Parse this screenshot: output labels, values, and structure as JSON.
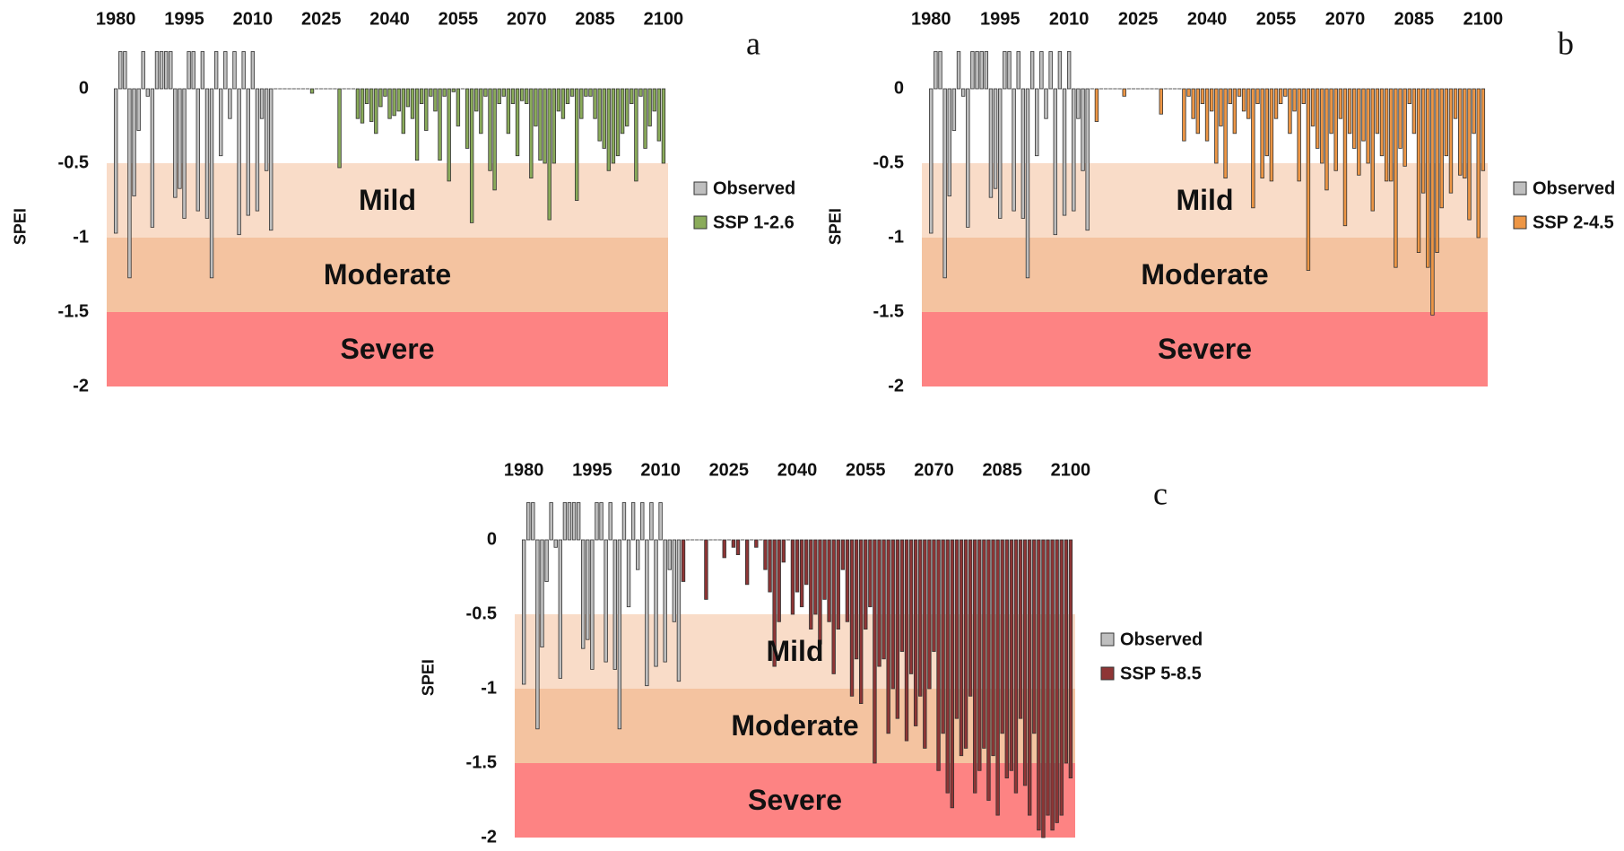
{
  "chart_data": [
    {
      "type": "bar",
      "panel_label": "a",
      "y_label": "SPEI",
      "xlim": [
        1978,
        2101
      ],
      "xticks": [
        1980,
        1995,
        2010,
        2025,
        2040,
        2055,
        2070,
        2085,
        2100
      ],
      "ylim": [
        -2,
        0.27
      ],
      "yticks": [
        0,
        -0.5,
        -1,
        -1.5,
        -2
      ],
      "bands": [
        {
          "label": "Mild",
          "from": -0.5,
          "to": -1,
          "color": "#f9dcc8",
          "text_color": "#e8936a"
        },
        {
          "label": "Moderate",
          "from": -1,
          "to": -1.5,
          "color": "#f4c3a0",
          "text_color": "#e05a3a"
        },
        {
          "label": "Severe",
          "from": -1.5,
          "to": -2,
          "color": "#fd8383",
          "text_color": "#b55a5a"
        }
      ],
      "series": [
        {
          "name": "Observed",
          "color": "#bfbfbf",
          "x": [
            1980,
            1981,
            1982,
            1983,
            1984,
            1985,
            1986,
            1987,
            1988,
            1989,
            1990,
            1991,
            1992,
            1993,
            1994,
            1995,
            1996,
            1997,
            1998,
            1999,
            2000,
            2001,
            2002,
            2003,
            2004,
            2005,
            2006,
            2007,
            2008,
            2009,
            2010,
            2011,
            2012,
            2013,
            2014
          ],
          "values": [
            -0.97,
            0.25,
            0.25,
            -1.27,
            -0.72,
            -0.28,
            0.25,
            -0.05,
            -0.93,
            0.25,
            0.25,
            0.25,
            0.25,
            -0.73,
            -0.67,
            -0.87,
            0.25,
            0.25,
            -0.82,
            0.25,
            -0.87,
            -1.27,
            0.25,
            -0.45,
            0.25,
            -0.2,
            0.25,
            -0.98,
            0.25,
            -0.85,
            0.25,
            -0.82,
            -0.2,
            -0.55,
            -0.95
          ]
        },
        {
          "name": "SSP 1-2.6",
          "color": "#8aab5a",
          "x": [
            2015,
            2016,
            2017,
            2018,
            2019,
            2020,
            2021,
            2022,
            2023,
            2024,
            2025,
            2026,
            2027,
            2028,
            2029,
            2030,
            2031,
            2032,
            2033,
            2034,
            2035,
            2036,
            2037,
            2038,
            2039,
            2040,
            2041,
            2042,
            2043,
            2044,
            2045,
            2046,
            2047,
            2048,
            2049,
            2050,
            2051,
            2052,
            2053,
            2054,
            2055,
            2056,
            2057,
            2058,
            2059,
            2060,
            2061,
            2062,
            2063,
            2064,
            2065,
            2066,
            2067,
            2068,
            2069,
            2070,
            2071,
            2072,
            2073,
            2074,
            2075,
            2076,
            2077,
            2078,
            2079,
            2080,
            2081,
            2082,
            2083,
            2084,
            2085,
            2086,
            2087,
            2088,
            2089,
            2090,
            2091,
            2092,
            2093,
            2094,
            2095,
            2096,
            2097,
            2098,
            2099,
            2100
          ],
          "values": [
            0,
            0,
            0,
            0,
            0,
            0,
            0,
            0,
            -0.03,
            0,
            0,
            0,
            0,
            0,
            -0.53,
            0,
            0,
            0,
            -0.2,
            -0.23,
            -0.1,
            -0.22,
            -0.3,
            -0.12,
            -0.05,
            -0.2,
            -0.18,
            -0.15,
            -0.3,
            -0.12,
            -0.2,
            -0.48,
            -0.1,
            -0.28,
            -0.05,
            -0.15,
            -0.48,
            -0.05,
            -0.62,
            -0.02,
            -0.25,
            0,
            -0.4,
            -0.9,
            -0.15,
            -0.3,
            -0.05,
            -0.55,
            -0.68,
            -0.1,
            -0.05,
            -0.3,
            -0.1,
            -0.45,
            -0.08,
            -0.1,
            -0.6,
            -0.25,
            -0.48,
            -0.5,
            -0.88,
            -0.5,
            -0.15,
            -0.2,
            -0.1,
            -0.05,
            -0.75,
            -0.2,
            -0.05,
            -0.05,
            -0.2,
            -0.35,
            -0.4,
            -0.55,
            -0.5,
            -0.45,
            -0.3,
            -0.25,
            -0.1,
            -0.62,
            -0.05,
            -0.4,
            -0.25,
            -0.15,
            -0.35,
            -0.5
          ]
        }
      ]
    },
    {
      "type": "bar",
      "panel_label": "b",
      "y_label": "SPEI",
      "xlim": [
        1978,
        2101
      ],
      "xticks": [
        1980,
        1995,
        2010,
        2025,
        2040,
        2055,
        2070,
        2085,
        2100
      ],
      "ylim": [
        -2,
        0.27
      ],
      "yticks": [
        0,
        -0.5,
        -1,
        -1.5,
        -2
      ],
      "bands": [
        {
          "label": "Mild",
          "from": -0.5,
          "to": -1,
          "color": "#f9dcc8",
          "text_color": "#e8936a"
        },
        {
          "label": "Moderate",
          "from": -1,
          "to": -1.5,
          "color": "#f4c3a0",
          "text_color": "#e05a3a"
        },
        {
          "label": "Severe",
          "from": -1.5,
          "to": -2,
          "color": "#fd8383",
          "text_color": "#b55a5a"
        }
      ],
      "series": [
        {
          "name": "Observed",
          "color": "#bfbfbf",
          "x": [
            1980,
            1981,
            1982,
            1983,
            1984,
            1985,
            1986,
            1987,
            1988,
            1989,
            1990,
            1991,
            1992,
            1993,
            1994,
            1995,
            1996,
            1997,
            1998,
            1999,
            2000,
            2001,
            2002,
            2003,
            2004,
            2005,
            2006,
            2007,
            2008,
            2009,
            2010,
            2011,
            2012,
            2013,
            2014
          ],
          "values": [
            -0.97,
            0.25,
            0.25,
            -1.27,
            -0.72,
            -0.28,
            0.25,
            -0.05,
            -0.93,
            0.25,
            0.25,
            0.25,
            0.25,
            -0.73,
            -0.67,
            -0.87,
            0.25,
            0.25,
            -0.82,
            0.25,
            -0.87,
            -1.27,
            0.25,
            -0.45,
            0.25,
            -0.2,
            0.25,
            -0.98,
            0.25,
            -0.85,
            0.25,
            -0.82,
            -0.2,
            -0.55,
            -0.95
          ]
        },
        {
          "name": "SSP 2-4.5",
          "color": "#ed9645",
          "x": [
            2015,
            2016,
            2017,
            2018,
            2019,
            2020,
            2021,
            2022,
            2023,
            2024,
            2025,
            2026,
            2027,
            2028,
            2029,
            2030,
            2031,
            2032,
            2033,
            2034,
            2035,
            2036,
            2037,
            2038,
            2039,
            2040,
            2041,
            2042,
            2043,
            2044,
            2045,
            2046,
            2047,
            2048,
            2049,
            2050,
            2051,
            2052,
            2053,
            2054,
            2055,
            2056,
            2057,
            2058,
            2059,
            2060,
            2061,
            2062,
            2063,
            2064,
            2065,
            2066,
            2067,
            2068,
            2069,
            2070,
            2071,
            2072,
            2073,
            2074,
            2075,
            2076,
            2077,
            2078,
            2079,
            2080,
            2081,
            2082,
            2083,
            2084,
            2085,
            2086,
            2087,
            2088,
            2089,
            2090,
            2091,
            2092,
            2093,
            2094,
            2095,
            2096,
            2097,
            2098,
            2099,
            2100
          ],
          "values": [
            0,
            -0.22,
            0,
            0,
            0,
            0,
            0,
            -0.05,
            0,
            0,
            0,
            0,
            0,
            0,
            0,
            -0.17,
            0,
            0,
            0,
            0,
            -0.35,
            -0.05,
            -0.2,
            -0.3,
            -0.1,
            -0.35,
            -0.15,
            -0.5,
            -0.25,
            -0.6,
            -0.1,
            -0.3,
            -0.05,
            -0.15,
            -0.2,
            -0.8,
            -0.1,
            -0.6,
            -0.45,
            -0.62,
            -0.2,
            -0.1,
            -0.05,
            -0.3,
            -0.15,
            -0.62,
            -0.1,
            -1.22,
            -0.25,
            -0.4,
            -0.5,
            -0.68,
            -0.3,
            -0.55,
            -0.2,
            -0.92,
            -0.3,
            -0.4,
            -0.58,
            -0.35,
            -0.5,
            -0.82,
            -0.3,
            -0.45,
            -0.62,
            -0.62,
            -1.2,
            -0.4,
            -0.52,
            -0.1,
            -0.3,
            -1.1,
            -0.7,
            -1.2,
            -1.52,
            -1.1,
            -0.8,
            -0.45,
            -0.7,
            -0.2,
            -0.58,
            -0.6,
            -0.88,
            -0.3,
            -1.0,
            -0.55
          ]
        }
      ]
    },
    {
      "type": "bar",
      "panel_label": "c",
      "y_label": "SPEI",
      "xlim": [
        1978,
        2101
      ],
      "xticks": [
        1980,
        1995,
        2010,
        2025,
        2040,
        2055,
        2070,
        2085,
        2100
      ],
      "ylim": [
        -2,
        0.27
      ],
      "yticks": [
        0,
        -0.5,
        -1,
        -1.5,
        -2
      ],
      "bands": [
        {
          "label": "Mild",
          "from": -0.5,
          "to": -1,
          "color": "#f9dcc8",
          "text_color": "#e8936a"
        },
        {
          "label": "Moderate",
          "from": -1,
          "to": -1.5,
          "color": "#f4c3a0",
          "text_color": "#e05a3a"
        },
        {
          "label": "Severe",
          "from": -1.5,
          "to": -2,
          "color": "#fd8383",
          "text_color": "#b55a5a"
        }
      ],
      "series": [
        {
          "name": "Observed",
          "color": "#bfbfbf",
          "x": [
            1980,
            1981,
            1982,
            1983,
            1984,
            1985,
            1986,
            1987,
            1988,
            1989,
            1990,
            1991,
            1992,
            1993,
            1994,
            1995,
            1996,
            1997,
            1998,
            1999,
            2000,
            2001,
            2002,
            2003,
            2004,
            2005,
            2006,
            2007,
            2008,
            2009,
            2010,
            2011,
            2012,
            2013,
            2014
          ],
          "values": [
            -0.97,
            0.25,
            0.25,
            -1.27,
            -0.72,
            -0.28,
            0.25,
            -0.05,
            -0.93,
            0.25,
            0.25,
            0.25,
            0.25,
            -0.73,
            -0.67,
            -0.87,
            0.25,
            0.25,
            -0.82,
            0.25,
            -0.87,
            -1.27,
            0.25,
            -0.45,
            0.25,
            -0.2,
            0.25,
            -0.98,
            0.25,
            -0.85,
            0.25,
            -0.82,
            -0.2,
            -0.55,
            -0.95
          ]
        },
        {
          "name": "SSP 5-8.5",
          "color": "#8e3535",
          "x": [
            2015,
            2016,
            2017,
            2018,
            2019,
            2020,
            2021,
            2022,
            2023,
            2024,
            2025,
            2026,
            2027,
            2028,
            2029,
            2030,
            2031,
            2032,
            2033,
            2034,
            2035,
            2036,
            2037,
            2038,
            2039,
            2040,
            2041,
            2042,
            2043,
            2044,
            2045,
            2046,
            2047,
            2048,
            2049,
            2050,
            2051,
            2052,
            2053,
            2054,
            2055,
            2056,
            2057,
            2058,
            2059,
            2060,
            2061,
            2062,
            2063,
            2064,
            2065,
            2066,
            2067,
            2068,
            2069,
            2070,
            2071,
            2072,
            2073,
            2074,
            2075,
            2076,
            2077,
            2078,
            2079,
            2080,
            2081,
            2082,
            2083,
            2084,
            2085,
            2086,
            2087,
            2088,
            2089,
            2090,
            2091,
            2092,
            2093,
            2094,
            2095,
            2096,
            2097,
            2098,
            2099,
            2100
          ],
          "values": [
            -0.28,
            0,
            0,
            0,
            0,
            -0.4,
            0,
            0,
            0,
            -0.12,
            0,
            -0.05,
            -0.1,
            0,
            -0.3,
            0,
            -0.05,
            0,
            -0.2,
            -0.35,
            -0.85,
            -0.55,
            -0.15,
            0,
            -0.5,
            -0.35,
            -0.45,
            -0.3,
            -0.6,
            -0.5,
            -0.7,
            -0.4,
            -0.55,
            -0.9,
            -0.6,
            -0.2,
            -0.55,
            -1.05,
            -0.8,
            -1.1,
            -0.6,
            -0.45,
            -1.5,
            -0.85,
            -0.8,
            -1.3,
            -1.0,
            -1.2,
            -0.75,
            -1.35,
            -0.9,
            -1.25,
            -1.05,
            -1.4,
            -1.0,
            -0.75,
            -1.55,
            -1.3,
            -1.7,
            -1.8,
            -1.2,
            -1.45,
            -1.4,
            -1.05,
            -1.7,
            -1.55,
            -1.4,
            -1.75,
            -1.45,
            -1.85,
            -1.3,
            -1.6,
            -1.55,
            -1.7,
            -1.2,
            -1.65,
            -1.85,
            -1.3,
            -1.95,
            -2.0,
            -1.85,
            -1.95,
            -1.9,
            -1.85,
            -1.5,
            -1.6
          ]
        }
      ]
    }
  ]
}
